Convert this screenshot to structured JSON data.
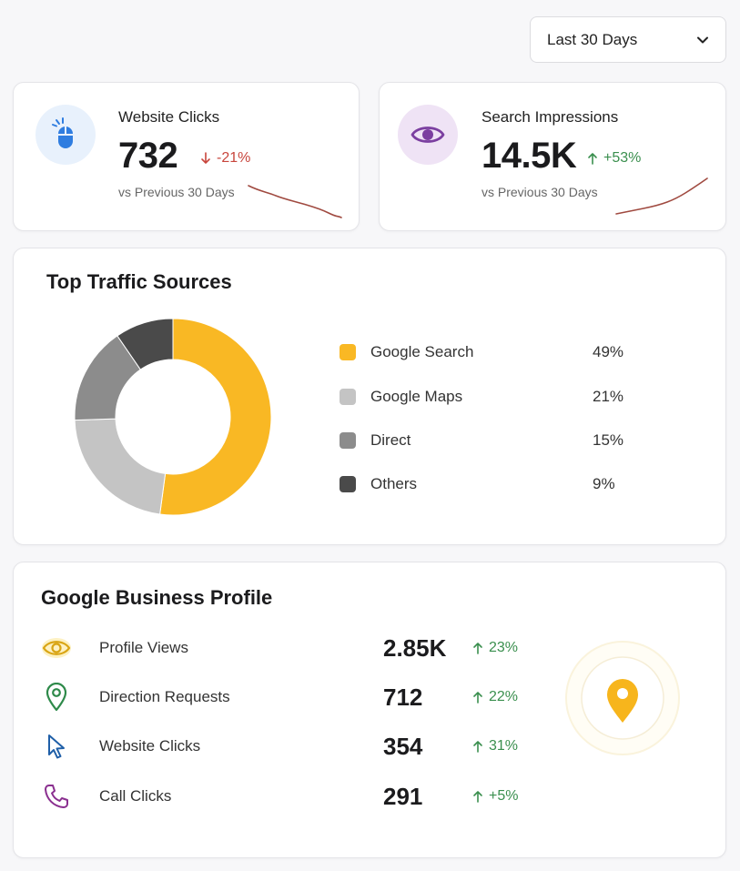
{
  "range_select": {
    "label": "Last 30 Days",
    "icon": "chevron-down-icon"
  },
  "stats": [
    {
      "title": "Website Clicks",
      "value": "732",
      "change": "-21%",
      "direction": "down",
      "subtitle": "vs Previous 30 Days",
      "icon": "mouse-icon",
      "accent": "#2f7de0"
    },
    {
      "title": "Search Impressions",
      "value": "14.5K",
      "change": "+53%",
      "direction": "up",
      "subtitle": "vs Previous 30 Days",
      "icon": "eye-icon",
      "accent": "#7b3fa0"
    }
  ],
  "traffic": {
    "title": "Top Traffic Sources"
  },
  "chart_data": {
    "type": "pie",
    "categories": [
      "Google Search",
      "Google Maps",
      "Direct",
      "Others"
    ],
    "values": [
      49,
      21,
      15,
      9
    ],
    "labels": [
      "49%",
      "21%",
      "15%",
      "9%"
    ],
    "colors": [
      "#f9b824",
      "#c4c4c4",
      "#8c8c8c",
      "#4a4a4a"
    ],
    "legend": "right"
  },
  "business_profile": {
    "title": "Google Business Profile",
    "rows": [
      {
        "label": "Profile Views",
        "value": "2.85K",
        "change": "23%",
        "icon": "eye-icon"
      },
      {
        "label": "Direction Requests",
        "value": "712",
        "change": "22%",
        "icon": "location-pin-icon"
      },
      {
        "label": "Website Clicks",
        "value": "354",
        "change": "31%",
        "icon": "cursor-icon"
      },
      {
        "label": "Call Clicks",
        "value": "291",
        "change": "+5%",
        "icon": "phone-icon"
      }
    ]
  },
  "colors": {
    "down": "#c8453c",
    "up": "#3a8f4e",
    "pin": "#f7b51c"
  }
}
